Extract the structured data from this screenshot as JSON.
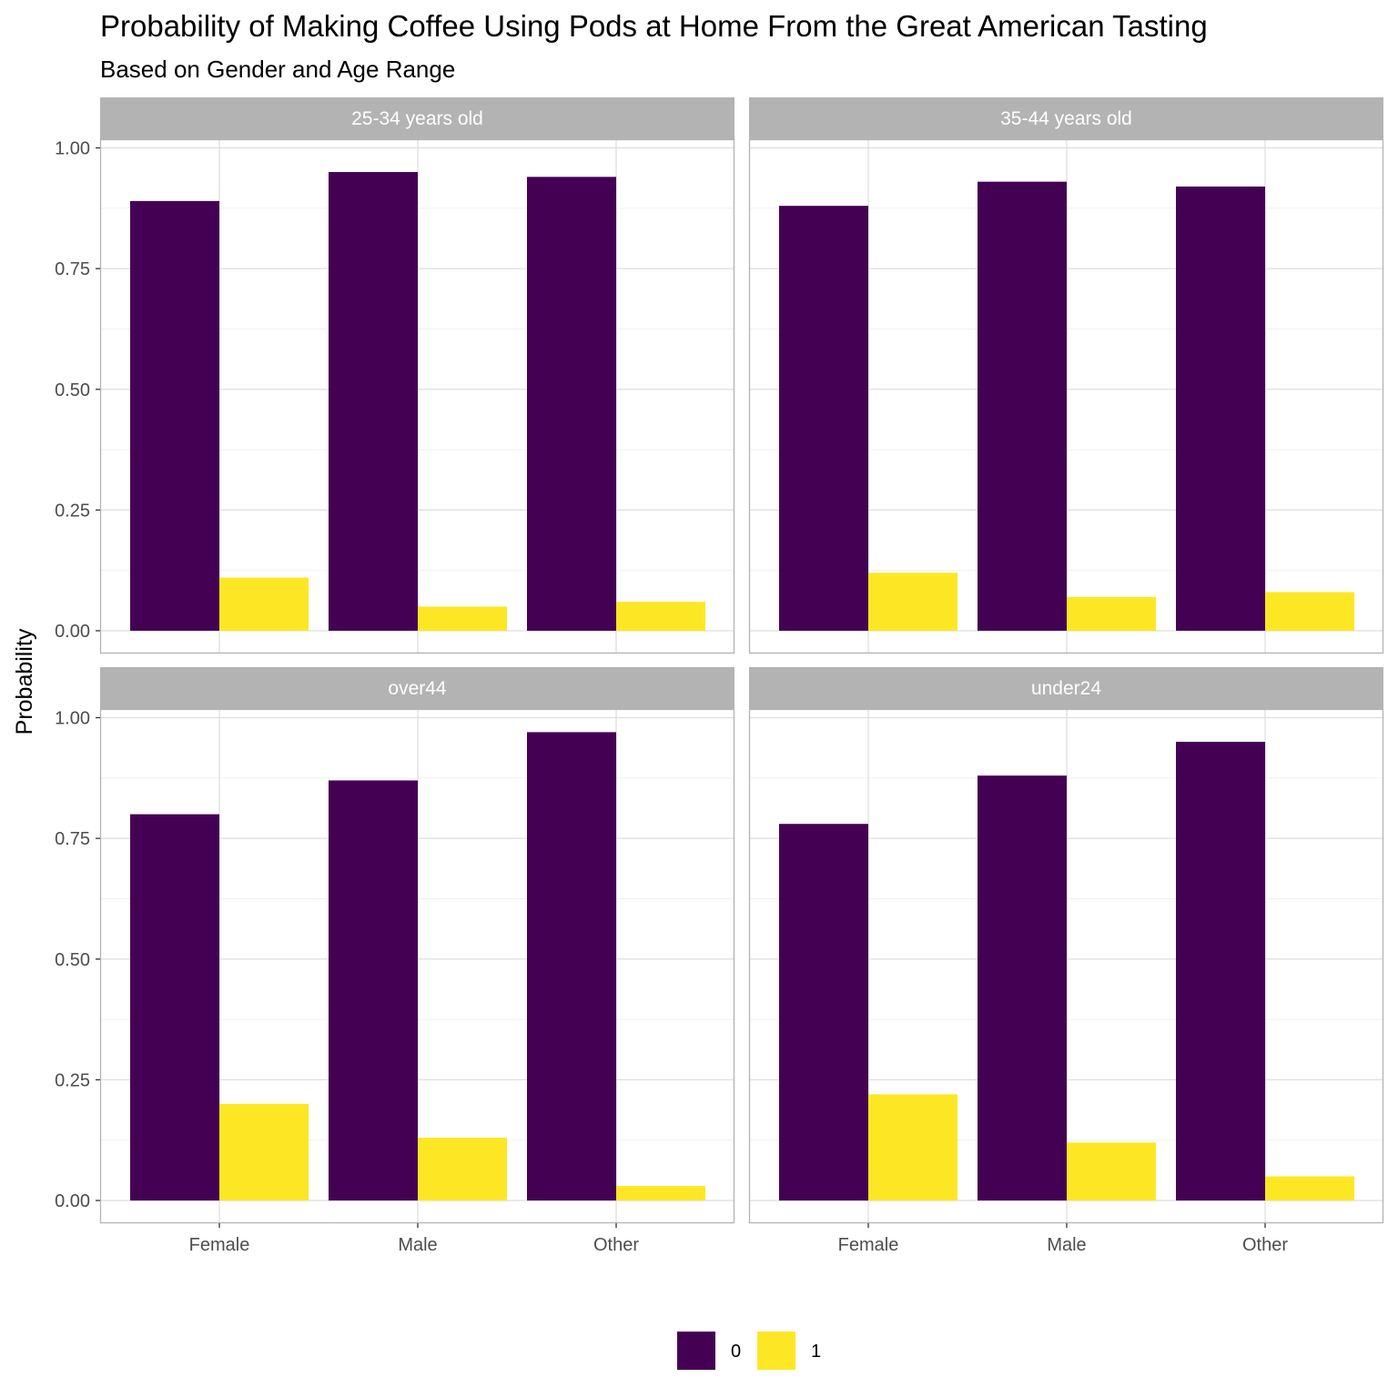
{
  "chart_data": {
    "type": "bar",
    "title": "Probability of Making Coffee Using Pods at Home From the Great American Tasting",
    "subtitle": "Based on Gender and Age Range",
    "xlabel": "",
    "ylabel": "Probability",
    "ylim": [
      0,
      1.02
    ],
    "yticks": [
      "0.00",
      "0.25",
      "0.50",
      "0.75",
      "1.00"
    ],
    "categories": [
      "Female",
      "Male",
      "Other"
    ],
    "grid": true,
    "legend_position": "bottom",
    "legend": [
      {
        "label": "0",
        "color": "#440154"
      },
      {
        "label": "1",
        "color": "#FDE725"
      }
    ],
    "panels": [
      {
        "label": "25-34 years old",
        "series": [
          {
            "name": "0",
            "values": [
              0.89,
              0.95,
              0.94
            ]
          },
          {
            "name": "1",
            "values": [
              0.11,
              0.05,
              0.06
            ]
          }
        ]
      },
      {
        "label": "35-44 years old",
        "series": [
          {
            "name": "0",
            "values": [
              0.88,
              0.93,
              0.92
            ]
          },
          {
            "name": "1",
            "values": [
              0.12,
              0.07,
              0.08
            ]
          }
        ]
      },
      {
        "label": "over44",
        "series": [
          {
            "name": "0",
            "values": [
              0.8,
              0.87,
              0.97
            ]
          },
          {
            "name": "1",
            "values": [
              0.2,
              0.13,
              0.03
            ]
          }
        ]
      },
      {
        "label": "under24",
        "series": [
          {
            "name": "0",
            "values": [
              0.78,
              0.88,
              0.95
            ]
          },
          {
            "name": "1",
            "values": [
              0.22,
              0.12,
              0.05
            ]
          }
        ]
      }
    ]
  }
}
